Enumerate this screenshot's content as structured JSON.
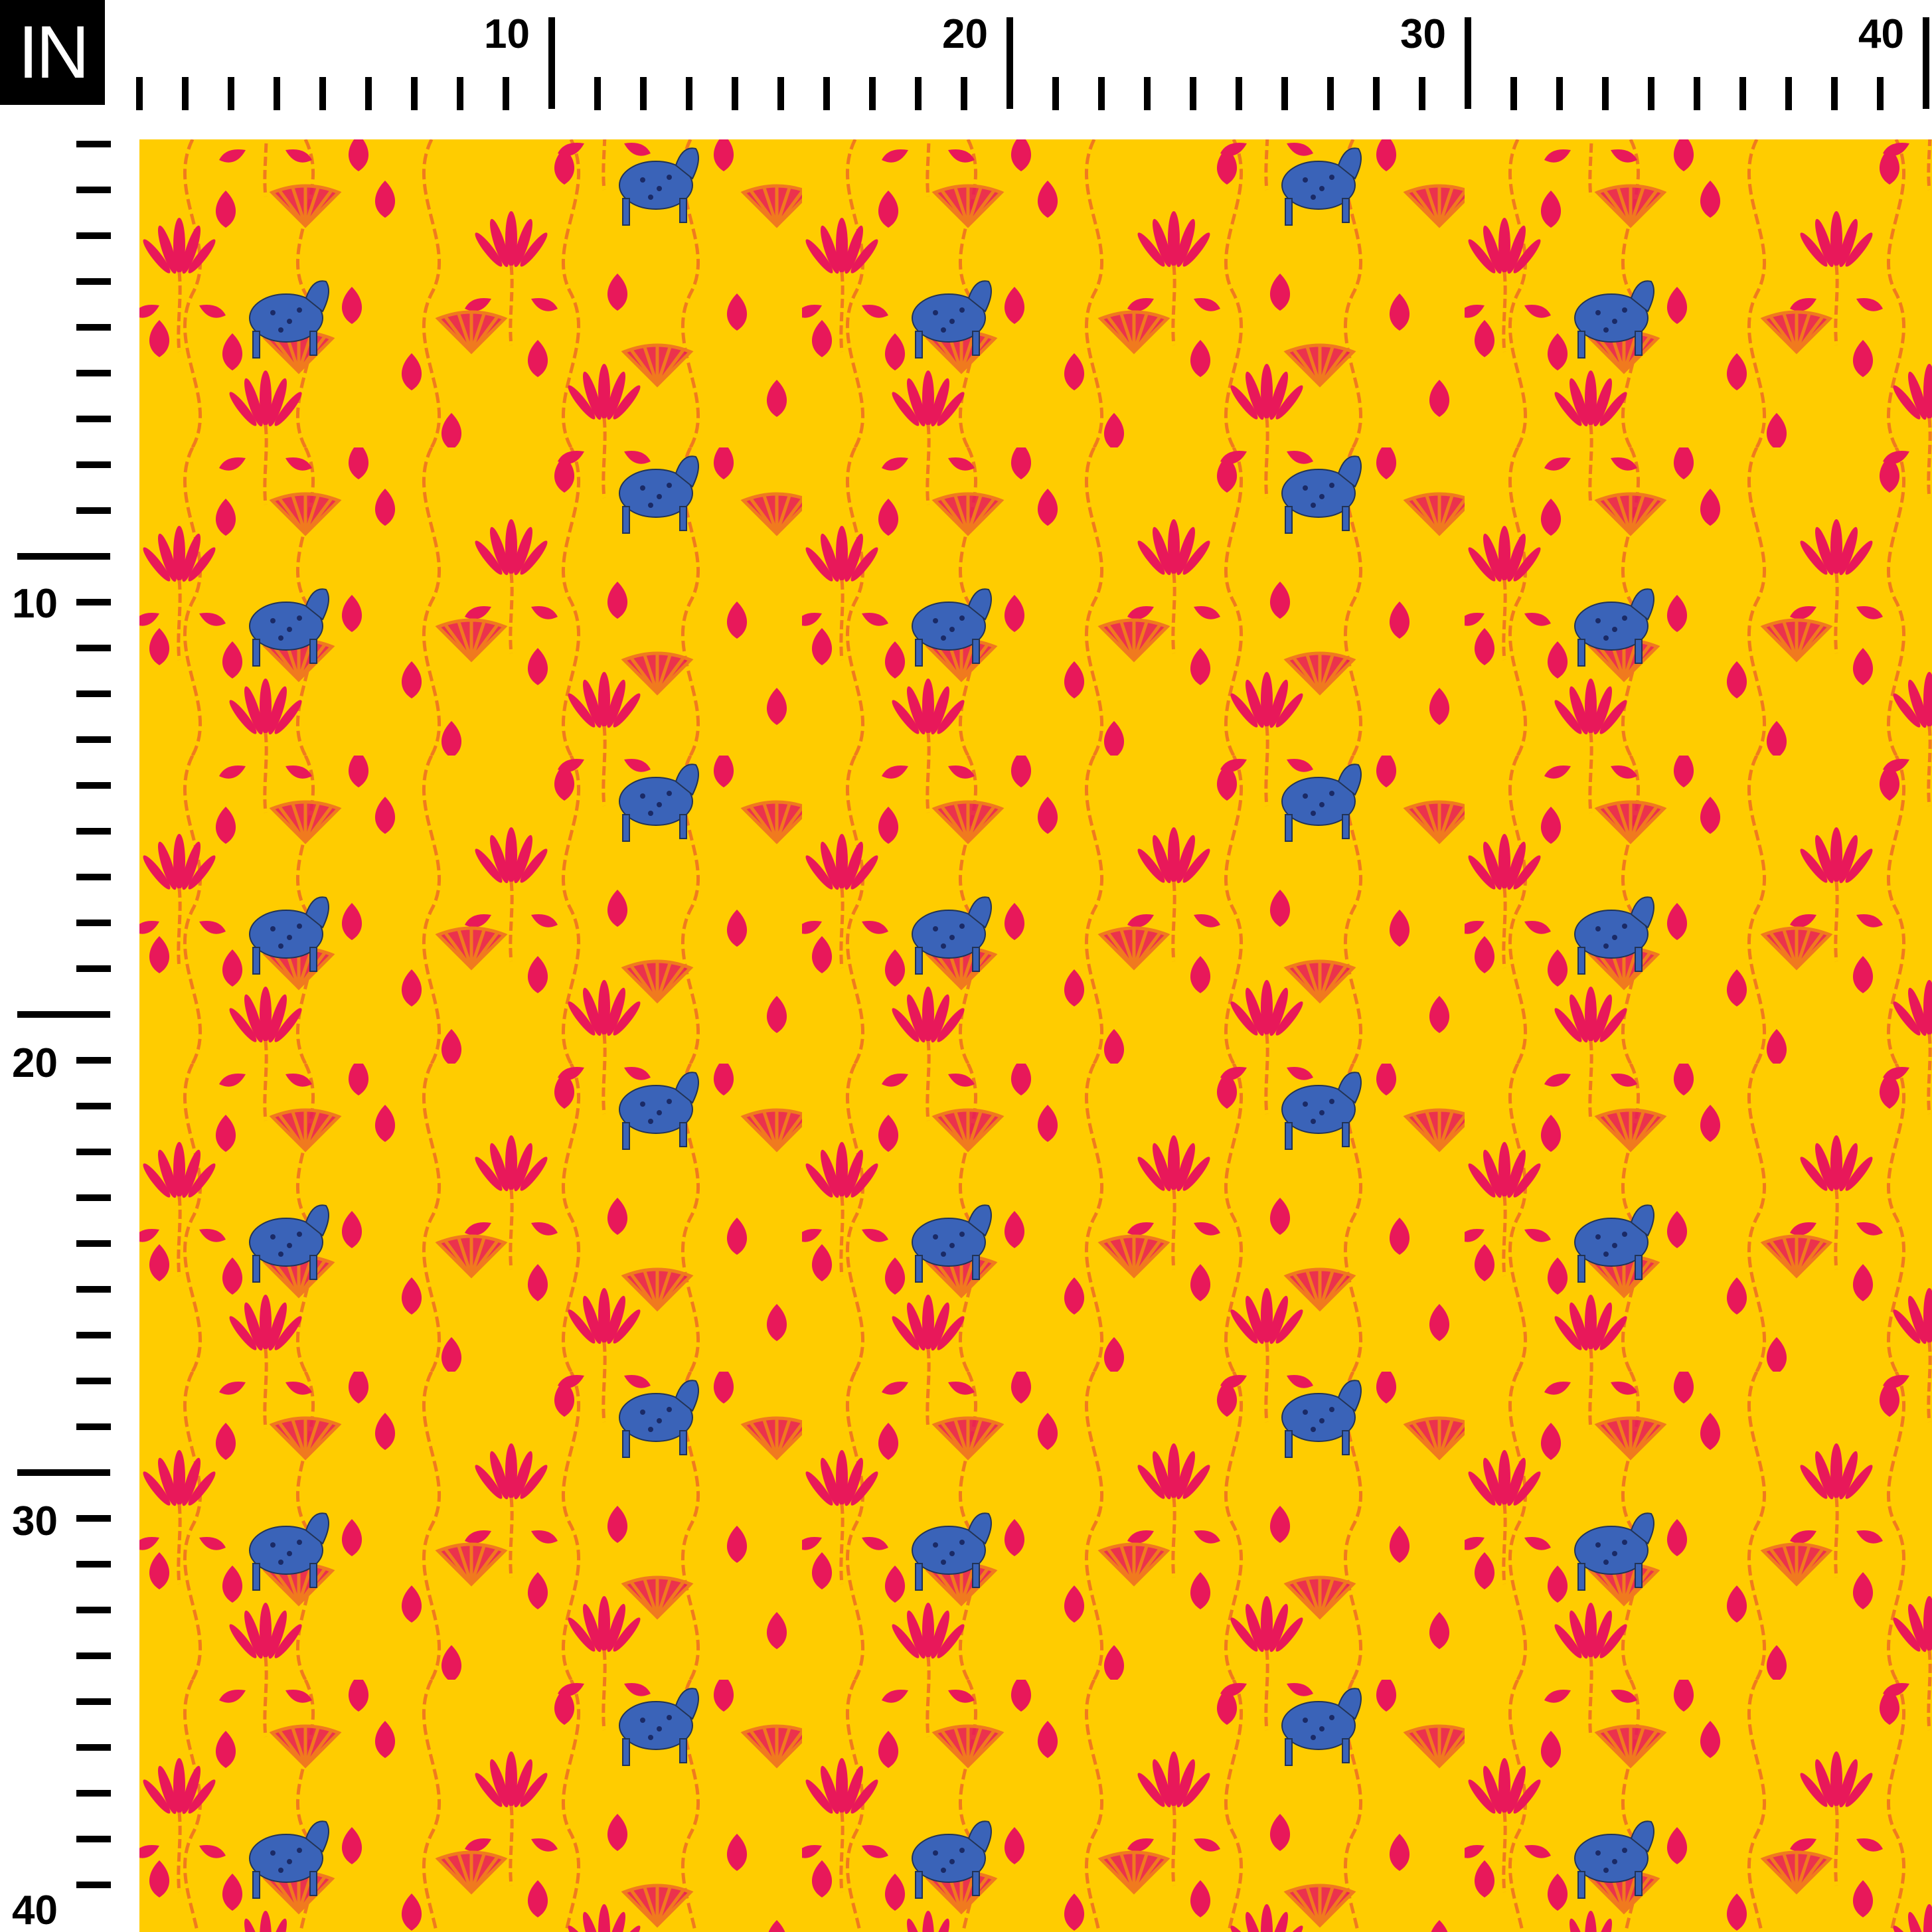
{
  "ruler": {
    "unit": "IN",
    "top_labels": [
      "10",
      "20",
      "30",
      "40"
    ],
    "left_labels": [
      "10",
      "20",
      "30",
      "40"
    ]
  },
  "swatch": {
    "motifs": [
      "red-lotus",
      "red-leaf",
      "orange-vine",
      "outlined-lotus",
      "blue-cow"
    ],
    "colors": {
      "background": "#FFCC00",
      "lotus": "#E8185A",
      "vine": "#F07A1E",
      "cow": "#3A63B8",
      "ruler": "#000000"
    }
  }
}
